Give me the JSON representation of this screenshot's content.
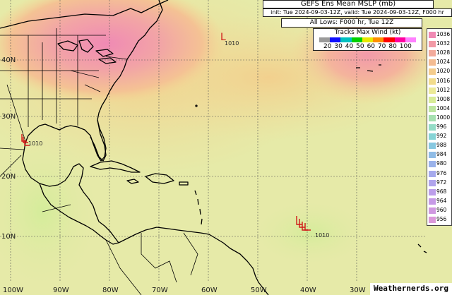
{
  "header": {
    "title": "GEFS Ens Mean MSLP (mb)",
    "init_line": "init: Tue 2024-09-03-12Z, valid: Tue 2024-09-03-12Z, F000 hr",
    "lows_line": "All Lows: F000 hr, Tue 12Z"
  },
  "wind_legend": {
    "title": "Tracks Max Wind (kt)",
    "ticks": [
      "20",
      "30",
      "40",
      "50",
      "60",
      "70",
      "80",
      "100"
    ],
    "colors": [
      "#9a9a9a",
      "#1010ff",
      "#00c0c0",
      "#00d000",
      "#e8e800",
      "#ff9000",
      "#ff0000",
      "#ff00a0",
      "#ff80ff"
    ]
  },
  "mslp_legend": {
    "levels": [
      {
        "value": "1036",
        "color": "#f08ab4"
      },
      {
        "value": "1032",
        "color": "#f29aa6"
      },
      {
        "value": "1028",
        "color": "#f2ab9c"
      },
      {
        "value": "1024",
        "color": "#f4bc92"
      },
      {
        "value": "1020",
        "color": "#f4cc8c"
      },
      {
        "value": "1016",
        "color": "#f2dc8c"
      },
      {
        "value": "1012",
        "color": "#ecea98"
      },
      {
        "value": "1008",
        "color": "#d8ec98"
      },
      {
        "value": "1004",
        "color": "#bde6a0"
      },
      {
        "value": "1000",
        "color": "#a6e0b0"
      },
      {
        "value": "996",
        "color": "#94dcc6"
      },
      {
        "value": "992",
        "color": "#86d4d6"
      },
      {
        "value": "988",
        "color": "#88c8e0"
      },
      {
        "value": "984",
        "color": "#90bce6"
      },
      {
        "value": "980",
        "color": "#9ab2ea"
      },
      {
        "value": "976",
        "color": "#a6aaec"
      },
      {
        "value": "972",
        "color": "#b0a4ec"
      },
      {
        "value": "968",
        "color": "#bc9eea"
      },
      {
        "value": "964",
        "color": "#c69ae6"
      },
      {
        "value": "960",
        "color": "#d098e0"
      },
      {
        "value": "956",
        "color": "#dc98da"
      }
    ]
  },
  "axes": {
    "lat_labels": [
      "40N",
      "30N",
      "20N",
      "10N"
    ],
    "lon_labels": [
      "100W",
      "90W",
      "80W",
      "70W",
      "60W",
      "50W",
      "40W",
      "30W"
    ]
  },
  "lows": [
    {
      "label": "L",
      "pressure": "1010"
    },
    {
      "label": "L",
      "pressure": "1010"
    },
    {
      "label": "L",
      "pressure": "1010"
    }
  ],
  "field_colors": {
    "background": "#e6eaa8",
    "high_center": "#f2a0aa",
    "ridge": "#f4cc94",
    "land_line": "#000000",
    "grid": "#555555",
    "track": "#d01818"
  },
  "credit": "Weathernerds.org"
}
